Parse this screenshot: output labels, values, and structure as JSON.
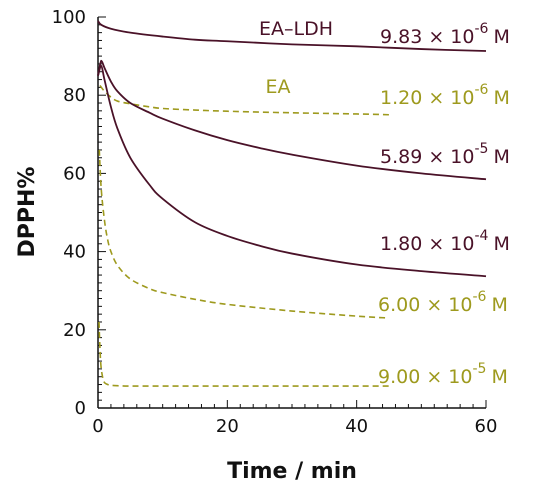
{
  "chart_data": {
    "type": "line",
    "xlabel": "Time / min",
    "ylabel": "DPPH%",
    "xlim": [
      0,
      60
    ],
    "ylim": [
      0,
      100
    ],
    "x_ticks": [
      0,
      20,
      40,
      60
    ],
    "y_ticks": [
      0,
      20,
      40,
      60,
      80,
      100
    ],
    "x_tick_labels": [
      "0",
      "20",
      "40",
      "60"
    ],
    "y_tick_labels": [
      "0",
      "20",
      "40",
      "60",
      "80",
      "100"
    ],
    "group_labels": [
      {
        "text": "EA–LDH",
        "color": "#4a1228"
      },
      {
        "text": "EA",
        "color": "#9e9a1e"
      }
    ],
    "series": [
      {
        "name": "9.83 × 10⁻⁶ M",
        "label_mantissa": "9.83 × 10",
        "label_exponent": "-6",
        "label_unit": "M",
        "group": "EA–LDH",
        "color": "#4a1228",
        "dash": "solid",
        "x": [
          0,
          0.5,
          2,
          5,
          10,
          15,
          20,
          30,
          40,
          50,
          60
        ],
        "y": [
          99,
          98,
          97,
          96,
          95,
          94.2,
          93.8,
          93,
          92.5,
          91.8,
          91.3
        ]
      },
      {
        "name": "1.20 × 10⁻⁶ M",
        "label_mantissa": "1.20 × 10",
        "label_exponent": "-6",
        "label_unit": "M",
        "group": "EA",
        "color": "#9e9a1e",
        "dash": "dashed",
        "x": [
          0.3,
          1,
          2,
          3,
          5,
          8,
          10,
          15,
          20,
          30,
          40,
          45
        ],
        "y": [
          82.5,
          81,
          79.5,
          78.5,
          77.8,
          77,
          76.6,
          76.2,
          75.9,
          75.5,
          75.2,
          75
        ]
      },
      {
        "name": "5.89 × 10⁻⁵ M",
        "label_mantissa": "5.89 × 10",
        "label_exponent": "-5",
        "label_unit": "M",
        "group": "EA–LDH",
        "color": "#4a1228",
        "dash": "solid",
        "x": [
          0,
          0.5,
          1,
          2,
          3,
          5,
          8,
          10,
          15,
          20,
          25,
          30,
          40,
          50,
          60
        ],
        "y": [
          85,
          88.8,
          87,
          83.5,
          81,
          78,
          75.5,
          74,
          71,
          68.5,
          66.5,
          64.8,
          62,
          60,
          58.5
        ]
      },
      {
        "name": "1.80 × 10⁻⁴ M",
        "label_mantissa": "1.80 × 10",
        "label_exponent": "-4",
        "label_unit": "M",
        "group": "EA–LDH",
        "color": "#4a1228",
        "dash": "solid",
        "x": [
          0,
          0.5,
          1,
          2,
          3,
          5,
          8,
          10,
          15,
          20,
          25,
          30,
          40,
          50,
          60
        ],
        "y": [
          85,
          87.5,
          84,
          77,
          71.5,
          64,
          57,
          53.5,
          47.5,
          44,
          41.5,
          39.5,
          36.7,
          35,
          33.7
        ]
      },
      {
        "name": "6.00 × 10⁻⁶ M",
        "label_mantissa": "6.00 × 10",
        "label_exponent": "-6",
        "label_unit": "M",
        "group": "EA",
        "color": "#9e9a1e",
        "dash": "dashed",
        "x": [
          0.2,
          0.5,
          1,
          1.5,
          2,
          3,
          5,
          8,
          10,
          15,
          20,
          30,
          40,
          45
        ],
        "y": [
          66,
          56,
          48,
          43,
          40,
          36.5,
          33,
          30.5,
          29.5,
          27.8,
          26.5,
          24.8,
          23.5,
          23
        ]
      },
      {
        "name": "9.00 × 10⁻⁵ M",
        "label_mantissa": "9.00 × 10",
        "label_exponent": "-5",
        "label_unit": "M",
        "group": "EA",
        "color": "#9e9a1e",
        "dash": "dashed",
        "x": [
          0.15,
          0.4,
          0.7,
          1,
          1.5,
          2,
          3,
          5,
          10,
          20,
          30,
          40,
          45
        ],
        "y": [
          22,
          12,
          8,
          6.5,
          6,
          5.8,
          5.7,
          5.6,
          5.6,
          5.6,
          5.6,
          5.6,
          5.6
        ]
      }
    ]
  }
}
